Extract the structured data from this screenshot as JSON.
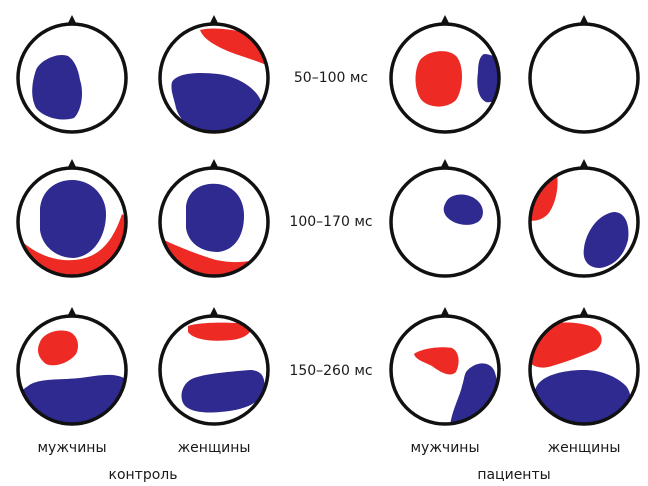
{
  "time_windows": [
    "50–100 мс",
    "100–170 мс",
    "150–260 мс"
  ],
  "column_labels": [
    "мужчины",
    "женщины",
    "мужчины",
    "женщины"
  ],
  "group_labels": [
    "контроль",
    "пациенты"
  ],
  "colors": {
    "positive": "#ee2a24",
    "negative": "#2e2a8f",
    "outline": "#111111"
  },
  "maps": [
    {
      "group": "контроль",
      "sex": "мужчины",
      "window": "50–100 мс",
      "regions": [
        {
          "polarity": "negative",
          "location": "left-central"
        }
      ]
    },
    {
      "group": "контроль",
      "sex": "женщины",
      "window": "50–100 мс",
      "regions": [
        {
          "polarity": "positive",
          "location": "right-frontal"
        },
        {
          "polarity": "negative",
          "location": "central-posterior"
        }
      ]
    },
    {
      "group": "пациенты",
      "sex": "мужчины",
      "window": "50–100 мс",
      "regions": [
        {
          "polarity": "positive",
          "location": "left-central"
        },
        {
          "polarity": "negative",
          "location": "right-temporal"
        }
      ]
    },
    {
      "group": "пациенты",
      "sex": "женщины",
      "window": "50–100 мс",
      "regions": []
    },
    {
      "group": "контроль",
      "sex": "мужчины",
      "window": "100–170 мс",
      "regions": [
        {
          "polarity": "negative",
          "location": "central"
        },
        {
          "polarity": "positive",
          "location": "posterior"
        }
      ]
    },
    {
      "group": "контроль",
      "sex": "женщины",
      "window": "100–170 мс",
      "regions": [
        {
          "polarity": "negative",
          "location": "central"
        },
        {
          "polarity": "positive",
          "location": "left-posterior"
        }
      ]
    },
    {
      "group": "пациенты",
      "sex": "мужчины",
      "window": "100–170 мс",
      "regions": [
        {
          "polarity": "negative",
          "location": "right-central"
        }
      ]
    },
    {
      "group": "пациенты",
      "sex": "женщины",
      "window": "100–170 мс",
      "regions": [
        {
          "polarity": "positive",
          "location": "left-frontal"
        },
        {
          "polarity": "negative",
          "location": "right-posterior"
        }
      ]
    },
    {
      "group": "контроль",
      "sex": "мужчины",
      "window": "150–260 мс",
      "regions": [
        {
          "polarity": "positive",
          "location": "left-frontal"
        },
        {
          "polarity": "negative",
          "location": "posterior"
        }
      ]
    },
    {
      "group": "контроль",
      "sex": "женщины",
      "window": "150–260 мс",
      "regions": [
        {
          "polarity": "positive",
          "location": "frontal"
        },
        {
          "polarity": "negative",
          "location": "posterior"
        }
      ]
    },
    {
      "group": "пациенты",
      "sex": "мужчины",
      "window": "150–260 мс",
      "regions": [
        {
          "polarity": "positive",
          "location": "left-central"
        },
        {
          "polarity": "negative",
          "location": "right-posterior"
        }
      ]
    },
    {
      "group": "пациенты",
      "sex": "женщины",
      "window": "150–260 мс",
      "regions": [
        {
          "polarity": "positive",
          "location": "frontal"
        },
        {
          "polarity": "negative",
          "location": "posterior"
        }
      ]
    }
  ]
}
